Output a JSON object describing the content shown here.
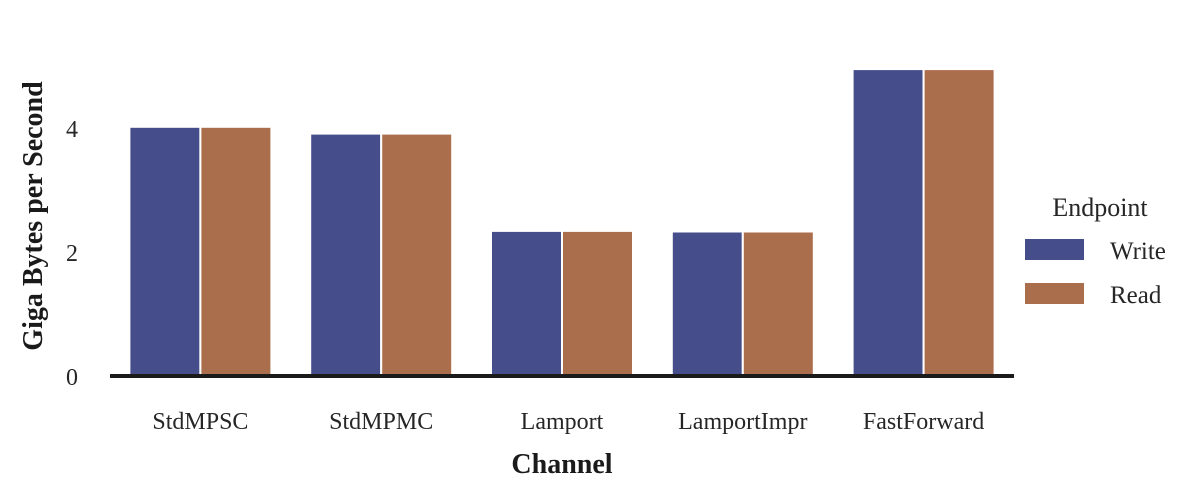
{
  "chart_data": {
    "type": "bar",
    "title": "",
    "xlabel": "Channel",
    "ylabel": "Giga Bytes per Second",
    "categories": [
      "StdMPSC",
      "StdMPMC",
      "Lamport",
      "LamportImpr",
      "FastForward"
    ],
    "series": [
      {
        "name": "Write",
        "color": "#454e8b",
        "values": [
          4.02,
          3.91,
          2.34,
          2.33,
          4.95
        ]
      },
      {
        "name": "Read",
        "color": "#ab6e4d",
        "values": [
          4.02,
          3.91,
          2.34,
          2.33,
          4.95
        ]
      }
    ],
    "ylim": [
      0,
      5.3
    ],
    "yticks": [
      0,
      2,
      4
    ],
    "grid": false,
    "legend": {
      "title": "Endpoint",
      "placement": "right"
    }
  }
}
